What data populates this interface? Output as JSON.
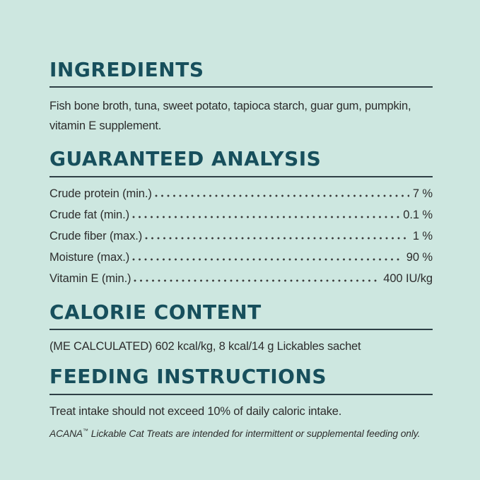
{
  "page": {
    "background_color": "#cde7e0",
    "heading_color": "#174f5c",
    "text_color": "#2d2d2d",
    "rule_color": "#2e3f45"
  },
  "sections": {
    "ingredients": {
      "title": "INGREDIENTS",
      "lines": [
        "Fish bone broth, tuna, sweet potato, tapioca starch, guar gum, pumpkin,",
        "vitamin E supplement."
      ]
    },
    "guaranteed_analysis": {
      "title": "GUARANTEED ANALYSIS",
      "rows": [
        {
          "label": "Crude protein (min.)",
          "value": "7 %"
        },
        {
          "label": "Crude fat (min.)",
          "value": "0.1 %"
        },
        {
          "label": "Crude fiber (max.)",
          "value": "1 %"
        },
        {
          "label": "Moisture (max.)",
          "value": "90 %"
        },
        {
          "label": "Vitamin E (min.)",
          "value": "400 IU/kg"
        }
      ]
    },
    "calorie_content": {
      "title": "CALORIE CONTENT",
      "body": "(ME CALCULATED) 602 kcal/kg, 8 kcal/14 g Lickables sachet"
    },
    "feeding_instructions": {
      "title": "FEEDING INSTRUCTIONS",
      "body": "Treat intake should not exceed 10% of daily caloric intake.",
      "note_brand": "ACANA",
      "note_trademark": "™",
      "note_rest": " Lickable Cat Treats are intended for intermittent or supplemental feeding only."
    }
  }
}
